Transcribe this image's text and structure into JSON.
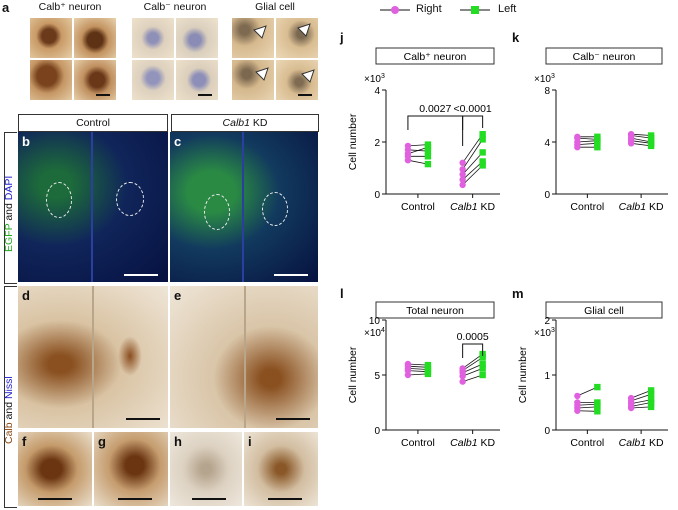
{
  "panels": {
    "a": {
      "letter": "a",
      "groups": [
        "Calb⁺ neuron",
        "Calb⁻ neuron",
        "Glial cell"
      ]
    },
    "b": {
      "letter": "b",
      "header": "Control"
    },
    "c": {
      "letter": "c",
      "header_italic": "Calb1",
      "header_rest": " KD"
    },
    "side_top": {
      "egfp": "EGFP",
      "and": " and ",
      "dapi": "DAPI"
    },
    "side_bottom": {
      "calb": "Calb",
      "and": " and ",
      "nissl": "Nissl"
    },
    "d": {
      "letter": "d"
    },
    "e": {
      "letter": "e"
    },
    "f": {
      "letter": "f"
    },
    "g": {
      "letter": "g"
    },
    "h": {
      "letter": "h"
    },
    "i": {
      "letter": "i"
    }
  },
  "legend": {
    "right": "Right",
    "left": "Left",
    "right_color": "#e060e0",
    "left_color": "#22dd22"
  },
  "chart_data": [
    {
      "panel": "j",
      "type": "scatter",
      "title": "Calb⁺ neuron",
      "ylabel": "Cell number",
      "multiplier": "×10",
      "exp": "3",
      "ylim": [
        0,
        4
      ],
      "yticks": [
        "0",
        "2",
        "4"
      ],
      "categories": [
        "Control",
        "Calb1 KD"
      ],
      "series": [
        {
          "name": "Right",
          "values": [
            [
              1.85,
              1.55,
              1.7,
              1.45,
              1.3
            ],
            [
              1.2,
              0.95,
              0.75,
              0.55,
              0.35
            ]
          ]
        },
        {
          "name": "Left",
          "values": [
            [
              1.9,
              1.8,
              1.65,
              1.45,
              1.15
            ],
            [
              2.3,
              2.1,
              1.6,
              1.25,
              1.1
            ]
          ]
        }
      ],
      "annotations": [
        {
          "text": "0.0027",
          "between": "Control-KD"
        },
        {
          "text": "<0.0001",
          "within": "KD"
        }
      ]
    },
    {
      "panel": "k",
      "type": "scatter",
      "title": "Calb⁻ neuron",
      "ylabel": "",
      "multiplier": "×10",
      "exp": "3",
      "ylim": [
        0,
        8
      ],
      "yticks": [
        "0",
        "4",
        "8"
      ],
      "categories": [
        "Control",
        "Calb1 KD"
      ],
      "series": [
        {
          "name": "Right",
          "values": [
            [
              4.4,
              4.3,
              4.0,
              3.8,
              3.6
            ],
            [
              4.6,
              4.5,
              4.3,
              4.1,
              3.9
            ]
          ]
        },
        {
          "name": "Left",
          "values": [
            [
              4.4,
              4.2,
              4.1,
              3.9,
              3.6
            ],
            [
              4.5,
              4.3,
              4.0,
              3.9,
              3.7
            ]
          ]
        }
      ],
      "annotations": []
    },
    {
      "panel": "l",
      "type": "scatter",
      "title": "Total neuron",
      "ylabel": "Cell number",
      "multiplier": "×10",
      "exp": "4",
      "ylim": [
        0,
        10
      ],
      "yticks": [
        "0",
        "5",
        "10"
      ],
      "categories": [
        "Control",
        "Calb1 KD"
      ],
      "series": [
        {
          "name": "Right",
          "values": [
            [
              6.0,
              5.8,
              5.6,
              5.4,
              5.0
            ],
            [
              5.6,
              5.4,
              5.2,
              4.9,
              4.4
            ]
          ]
        },
        {
          "name": "Left",
          "values": [
            [
              5.9,
              5.7,
              5.5,
              5.3,
              5.1
            ],
            [
              6.9,
              6.6,
              6.0,
              5.6,
              5.0
            ]
          ]
        }
      ],
      "annotations": [
        {
          "text": "0.0005",
          "within": "KD"
        }
      ]
    },
    {
      "panel": "m",
      "type": "scatter",
      "title": "Glial cell",
      "ylabel": "Cell number",
      "multiplier": "×10",
      "exp": "3",
      "ylim": [
        0,
        2
      ],
      "yticks": [
        "0",
        "1",
        "2"
      ],
      "categories": [
        "Control",
        "Calb1 KD"
      ],
      "series": [
        {
          "name": "Right",
          "values": [
            [
              0.62,
              0.5,
              0.45,
              0.4,
              0.35
            ],
            [
              0.58,
              0.53,
              0.48,
              0.43,
              0.4
            ]
          ]
        },
        {
          "name": "Left",
          "values": [
            [
              0.78,
              0.5,
              0.47,
              0.42,
              0.34
            ],
            [
              0.72,
              0.65,
              0.55,
              0.5,
              0.42
            ]
          ]
        }
      ],
      "annotations": []
    }
  ],
  "x_tick_italic": "Calb1",
  "x_tick_rest": " KD",
  "x_tick_control": "Control"
}
